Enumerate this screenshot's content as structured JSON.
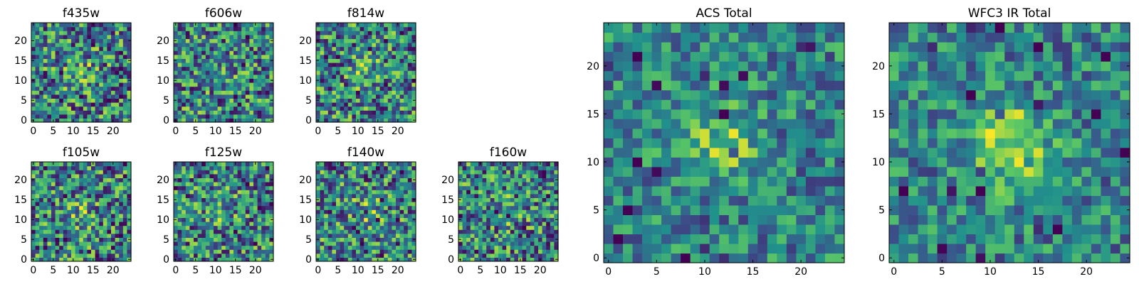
{
  "chart_data": [
    {
      "type": "heatmap",
      "title": "f435w",
      "x": {
        "range": [
          0,
          24
        ],
        "ticks": [
          0,
          5,
          10,
          15,
          20
        ]
      },
      "y": {
        "range": [
          0,
          24
        ],
        "ticks": [
          0,
          5,
          10,
          15,
          20
        ]
      },
      "colormap": "viridis",
      "description": "25x25 pixel cutout"
    },
    {
      "type": "heatmap",
      "title": "f606w",
      "x": {
        "range": [
          0,
          24
        ],
        "ticks": [
          0,
          5,
          10,
          15,
          20
        ]
      },
      "y": {
        "range": [
          0,
          24
        ],
        "ticks": [
          0,
          5,
          10,
          15,
          20
        ]
      },
      "colormap": "viridis",
      "description": "25x25 pixel cutout"
    },
    {
      "type": "heatmap",
      "title": "f814w",
      "x": {
        "range": [
          0,
          24
        ],
        "ticks": [
          0,
          5,
          10,
          15,
          20
        ]
      },
      "y": {
        "range": [
          0,
          24
        ],
        "ticks": [
          0,
          5,
          10,
          15,
          20
        ]
      },
      "colormap": "viridis",
      "description": "25x25 pixel cutout"
    },
    {
      "type": "heatmap",
      "title": "f105w",
      "x": {
        "range": [
          0,
          24
        ],
        "ticks": [
          0,
          5,
          10,
          15,
          20
        ]
      },
      "y": {
        "range": [
          0,
          24
        ],
        "ticks": [
          0,
          5,
          10,
          15,
          20
        ]
      },
      "colormap": "viridis",
      "description": "25x25 pixel cutout"
    },
    {
      "type": "heatmap",
      "title": "f125w",
      "x": {
        "range": [
          0,
          24
        ],
        "ticks": [
          0,
          5,
          10,
          15,
          20
        ]
      },
      "y": {
        "range": [
          0,
          24
        ],
        "ticks": [
          0,
          5,
          10,
          15,
          20
        ]
      },
      "colormap": "viridis",
      "description": "25x25 pixel cutout"
    },
    {
      "type": "heatmap",
      "title": "f140w",
      "x": {
        "range": [
          0,
          24
        ],
        "ticks": [
          0,
          5,
          10,
          15,
          20
        ]
      },
      "y": {
        "range": [
          0,
          24
        ],
        "ticks": [
          0,
          5,
          10,
          15,
          20
        ]
      },
      "colormap": "viridis",
      "description": "25x25 pixel cutout"
    },
    {
      "type": "heatmap",
      "title": "f160w",
      "x": {
        "range": [
          0,
          24
        ],
        "ticks": [
          0,
          5,
          10,
          15,
          20
        ]
      },
      "y": {
        "range": [
          0,
          24
        ],
        "ticks": [
          0,
          5,
          10,
          15,
          20
        ]
      },
      "colormap": "viridis",
      "description": "25x25 pixel cutout"
    },
    {
      "type": "heatmap",
      "title": "ACS Total",
      "x": {
        "range": [
          0,
          24
        ],
        "ticks": [
          0,
          5,
          10,
          15,
          20
        ]
      },
      "y": {
        "range": [
          0,
          24
        ],
        "ticks": [
          0,
          5,
          10,
          15,
          20
        ]
      },
      "colormap": "viridis",
      "description": "25x25 pixel stacked image"
    },
    {
      "type": "heatmap",
      "title": "WFC3 IR Total",
      "x": {
        "range": [
          0,
          24
        ],
        "ticks": [
          0,
          5,
          10,
          15,
          20
        ]
      },
      "y": {
        "range": [
          0,
          24
        ],
        "ticks": [
          0,
          5,
          10,
          15,
          20
        ]
      },
      "colormap": "viridis",
      "description": "25x25 pixel stacked image"
    }
  ],
  "colormap_stops": [
    "#440154",
    "#3b528b",
    "#21918c",
    "#5ec962",
    "#fde725"
  ]
}
